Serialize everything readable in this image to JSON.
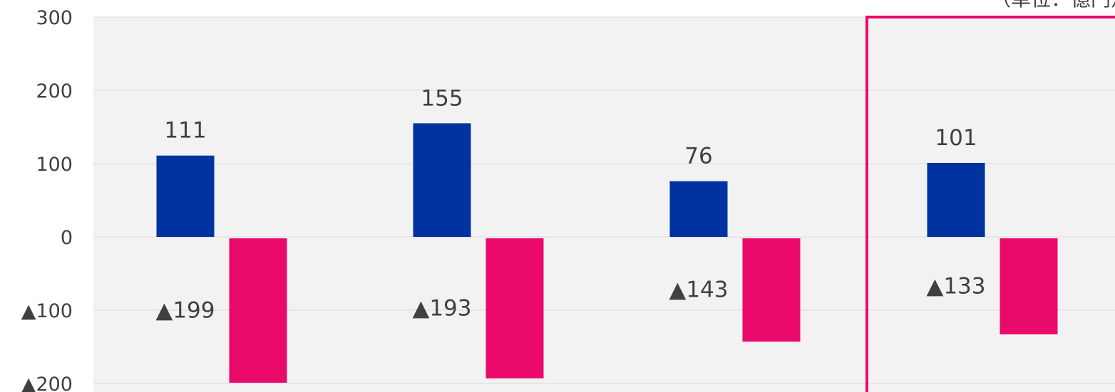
{
  "chart_data": {
    "type": "bar",
    "title": "",
    "unit_note": "（単位：億円）",
    "xlabel": "",
    "ylabel": "",
    "ylim": [
      -200,
      300
    ],
    "yticks": [
      {
        "value": 300,
        "label": "300"
      },
      {
        "value": 200,
        "label": "200"
      },
      {
        "value": 100,
        "label": "100"
      },
      {
        "value": 0,
        "label": "0"
      },
      {
        "value": -100,
        "label": "▲100"
      },
      {
        "value": -200,
        "label": "▲200"
      }
    ],
    "grid": true,
    "categories": [
      "",
      "",
      "",
      ""
    ],
    "series": [
      {
        "values": [
          111,
          155,
          76,
          101
        ],
        "labels": [
          "111",
          "155",
          "76",
          "101"
        ],
        "color": "#0033A0"
      },
      {
        "values": [
          -199,
          -193,
          -143,
          -133
        ],
        "labels": [
          "▲199",
          "▲193",
          "▲143",
          "▲133"
        ],
        "color": "#E90A6B"
      }
    ],
    "highlight": {
      "category_index": 3,
      "color": "#E90A6B"
    },
    "colors": {
      "plot_background": "#F2F2F2",
      "gridline": "#D9D9D9",
      "text": "#404040"
    }
  }
}
